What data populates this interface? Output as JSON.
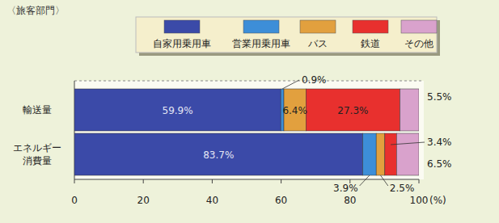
{
  "chart_data": {
    "type": "bar",
    "orientation": "horizontal",
    "stacked": true,
    "data_labels": true,
    "title": "〈旅客部門〉",
    "categories": [
      "輸送量",
      "エネルギー消費量"
    ],
    "series": [
      {
        "name": "自家用乗用車",
        "color": "#3b4aa8",
        "values": [
          59.9,
          83.7
        ],
        "value_labels": [
          "59.9%",
          "83.7%"
        ]
      },
      {
        "name": "営業用乗用車",
        "color": "#3d8ed8",
        "values": [
          0.9,
          3.9
        ],
        "value_labels": [
          "0.9%",
          "3.9%"
        ]
      },
      {
        "name": "バス",
        "color": "#e2a03e",
        "values": [
          6.4,
          2.5
        ],
        "value_labels": [
          "6.4%",
          "2.5%"
        ]
      },
      {
        "name": "鉄道",
        "color": "#e8302e",
        "values": [
          27.3,
          3.4
        ],
        "value_labels": [
          "27.3%",
          "3.4%"
        ]
      },
      {
        "name": "その他",
        "color": "#d9a2cc",
        "values": [
          5.5,
          6.5
        ],
        "value_labels": [
          "5.5%",
          "6.5%"
        ]
      }
    ],
    "xlim": [
      0,
      100
    ],
    "xticks": [
      0,
      20,
      40,
      60,
      80,
      100
    ],
    "xlabel": "(%)",
    "legend": "top"
  }
}
